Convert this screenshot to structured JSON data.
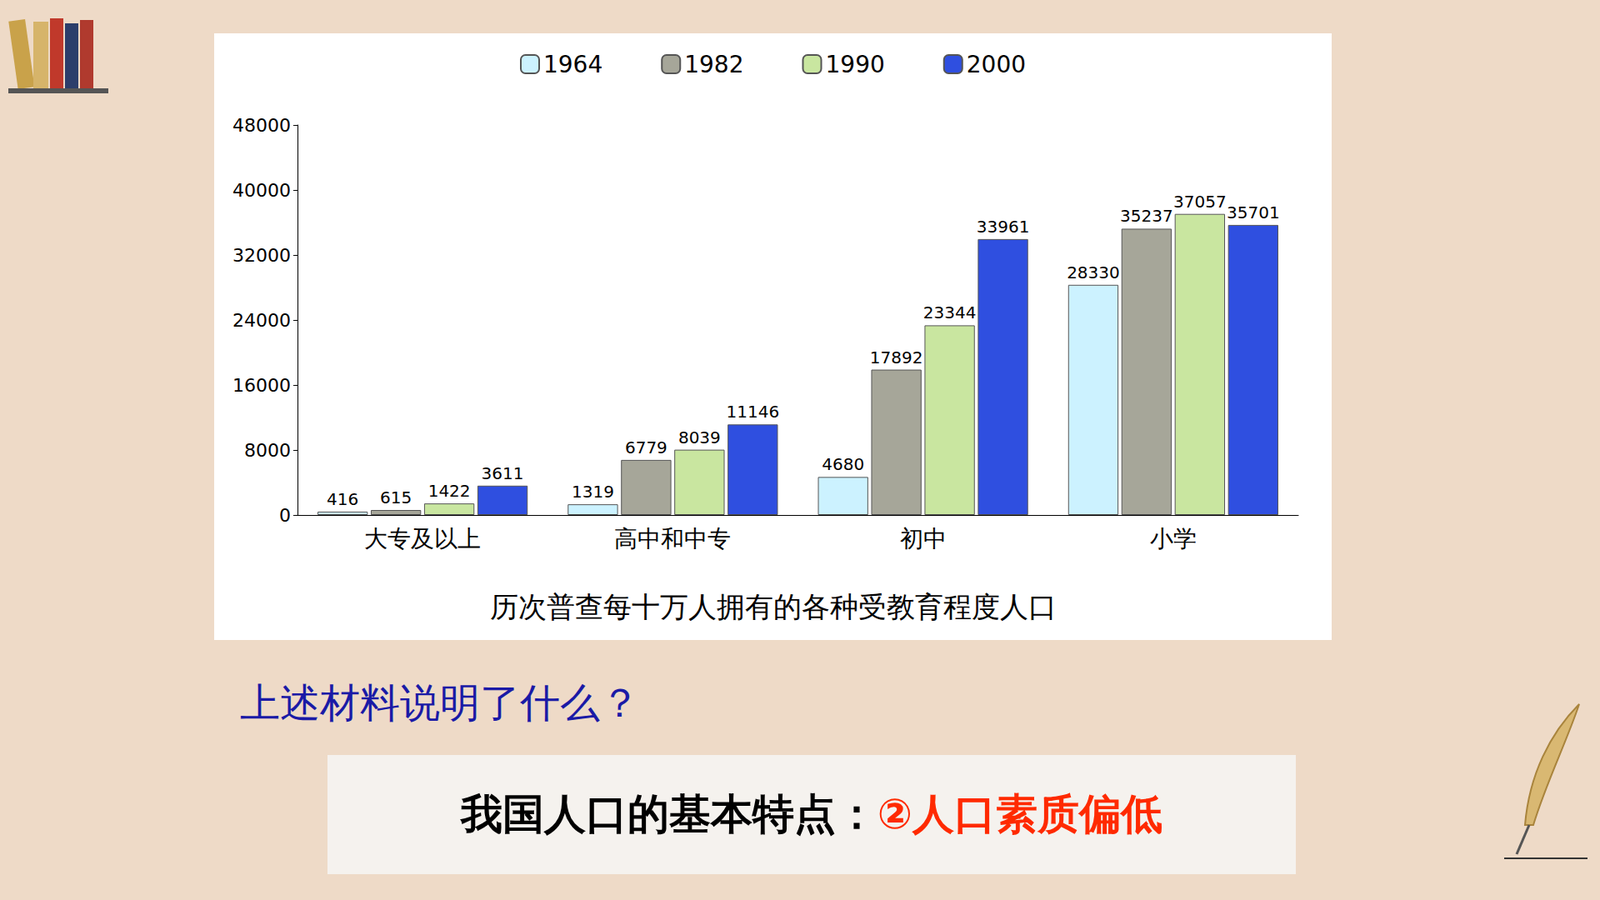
{
  "chart_data": {
    "type": "bar",
    "title": "历次普查每十万人拥有的各种受教育程度人口",
    "categories": [
      "大专及以上",
      "高中和中专",
      "初中",
      "小学"
    ],
    "series": [
      {
        "name": "1964",
        "color": "#ccf2ff",
        "values": [
          416,
          1319,
          4680,
          28330
        ]
      },
      {
        "name": "1982",
        "color": "#a6a699",
        "values": [
          615,
          6779,
          17892,
          35237
        ]
      },
      {
        "name": "1990",
        "color": "#c9e6a0",
        "values": [
          1422,
          8039,
          23344,
          37057
        ]
      },
      {
        "name": "2000",
        "color": "#2f4fe0",
        "values": [
          3611,
          11146,
          33961,
          35701
        ]
      }
    ],
    "ylim": [
      0,
      48000
    ],
    "yticks": [
      0,
      8000,
      16000,
      24000,
      32000,
      40000,
      48000
    ],
    "grid": false,
    "legend": "top",
    "data_labels": true
  },
  "slide": {
    "question": "上述材料说明了什么？",
    "answer": {
      "prefix": "我国人口的基本特点：",
      "point": "②人口素质偏低"
    }
  }
}
